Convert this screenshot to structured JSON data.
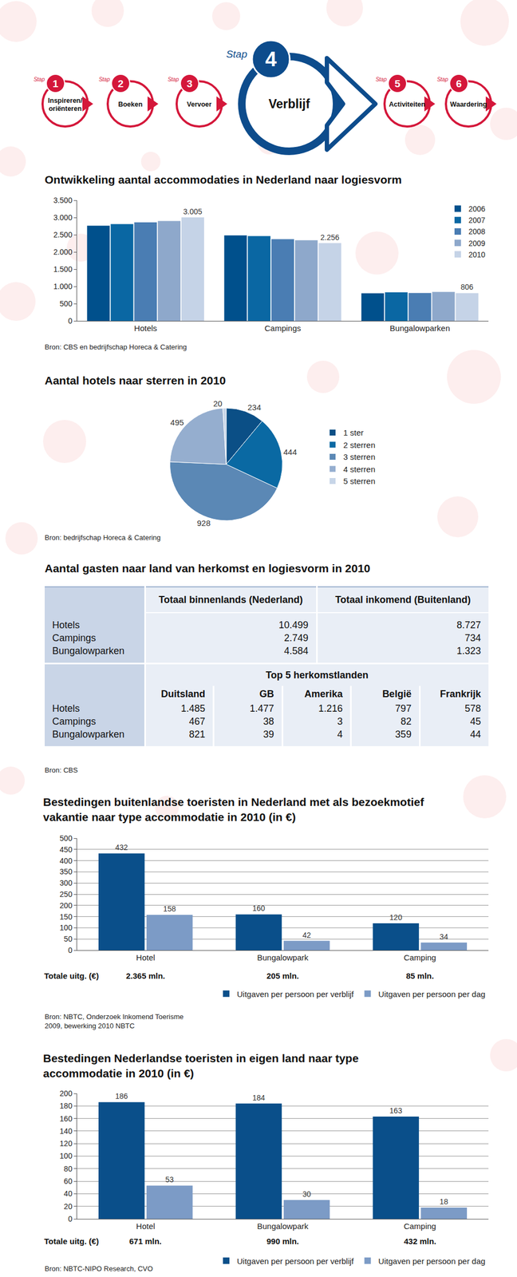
{
  "header": {
    "step_word": "Stap",
    "current": 4,
    "steps": [
      {
        "number": 1,
        "label_lines": [
          "Inspireren/",
          "oriënteren"
        ]
      },
      {
        "number": 2,
        "label_lines": [
          "Boeken"
        ]
      },
      {
        "number": 3,
        "label_lines": [
          "Vervoer"
        ]
      },
      {
        "number": 4,
        "label_lines": [
          "Verblijf"
        ]
      },
      {
        "number": 5,
        "label_lines": [
          "Activiteiten"
        ]
      },
      {
        "number": 6,
        "label_lines": [
          "Waardering"
        ]
      }
    ]
  },
  "chart_data": [
    {
      "type": "bar",
      "title": [
        "Ontwikkeling aantal accommodaties in Nederland naar logiesvorm"
      ],
      "categories": [
        "Hotels",
        "Campings",
        "Bungalowparken"
      ],
      "series": [
        {
          "name": "2006",
          "color": "#00508c",
          "values": [
            2760,
            2480,
            800
          ]
        },
        {
          "name": "2007",
          "color": "#0a67a3",
          "values": [
            2810,
            2460,
            830
          ]
        },
        {
          "name": "2008",
          "color": "#4a7db3",
          "values": [
            2860,
            2370,
            810
          ]
        },
        {
          "name": "2009",
          "color": "#8ea8cb",
          "values": [
            2900,
            2340,
            840
          ]
        },
        {
          "name": "2010",
          "color": "#c5d3e7",
          "values": [
            3005,
            2256,
            806
          ],
          "data_labels": true,
          "value_labels": [
            "3.005",
            "2.256",
            "806"
          ]
        }
      ],
      "ylim": [
        0,
        3500
      ],
      "yticks": [
        0,
        500,
        {
          "value": 1000,
          "label": "1.000"
        },
        {
          "value": 1500,
          "label": "1.500"
        },
        {
          "value": 2000,
          "label": "2.000"
        },
        {
          "value": 2500,
          "label": "2.500"
        },
        {
          "value": 3000,
          "label": "3.000"
        },
        {
          "value": 3500,
          "label": "3.500"
        }
      ],
      "grid": false,
      "legend": "top right",
      "source": [
        "Bron: CBS en bedrijfschap Horeca & Catering"
      ]
    },
    {
      "type": "pie",
      "title": [
        "Aantal hotels naar sterren in 2010"
      ],
      "categories": [
        "1 ster",
        "2 sterren",
        "3 sterren",
        "4 sterren",
        "5 sterren"
      ],
      "values": [
        234,
        444,
        928,
        495,
        20
      ],
      "colors": [
        "#0b4f86",
        "#0a69a3",
        "#5b88b5",
        "#95aecf",
        "#c7d5e8"
      ],
      "data_labels": true,
      "legend": "right",
      "source": [
        "Bron: bedrijfschap Horeca & Catering"
      ]
    },
    {
      "type": "bar",
      "title": [
        "Bestedingen buitenlandse toeristen in Nederland met als bezoekmotief",
        "vakantie naar type accommodatie in 2010 (in €)"
      ],
      "categories": [
        "Hotel",
        "Bungalowpark",
        "Camping"
      ],
      "series": [
        {
          "name": "Uitgaven per persoon per verblijf",
          "color": "#0a4f8a",
          "values": [
            432,
            160,
            120
          ]
        },
        {
          "name": "Uitgaven per persoon per dag",
          "color": "#7c9bc6",
          "values": [
            158,
            42,
            34
          ]
        }
      ],
      "data_labels": true,
      "ylim": [
        0,
        500
      ],
      "yticks": [
        0,
        50,
        100,
        150,
        200,
        250,
        300,
        350,
        400,
        450,
        500
      ],
      "grid": true,
      "legend": "bottom right",
      "totals_label": "Totale uitg. (€)",
      "totals": [
        "2.365 mln.",
        "205 mln.",
        "85 mln."
      ],
      "source": [
        "Bron: NBTC, Onderzoek Inkomend Toerisme",
        "2009, bewerking 2010 NBTC"
      ]
    },
    {
      "type": "bar",
      "title": [
        "Bestedingen Nederlandse toeristen in eigen land naar type",
        "accommodatie in 2010 (in €)"
      ],
      "categories": [
        "Hotel",
        "Bungalowpark",
        "Camping"
      ],
      "series": [
        {
          "name": "Uitgaven per persoon per verblijf",
          "color": "#0a4f8a",
          "values": [
            186,
            184,
            163
          ]
        },
        {
          "name": "Uitgaven per persoon per dag",
          "color": "#7c9bc6",
          "values": [
            53,
            30,
            18
          ]
        }
      ],
      "data_labels": true,
      "ylim": [
        0,
        200
      ],
      "yticks": [
        0,
        20,
        40,
        60,
        80,
        100,
        120,
        140,
        160,
        180,
        200
      ],
      "grid": true,
      "legend": "bottom right",
      "totals_label": "Totale uitg. (€)",
      "totals": [
        "671 mln.",
        "990 mln.",
        "432 mln."
      ],
      "source": [
        "Bron: NBTC-NIPO Research, CVO"
      ]
    }
  ],
  "table": {
    "title": "Aantal gasten naar land van herkomst en logiesvorm in 2010",
    "part1": {
      "columns": [
        "Totaal binnenlands (Nederland)",
        "Totaal inkomend (Buitenland)"
      ],
      "rows": [
        {
          "label": "Hotels",
          "cells": [
            "10.499",
            "8.727"
          ]
        },
        {
          "label": "Campings",
          "cells": [
            "2.749",
            "734"
          ]
        },
        {
          "label": "Bungalowparken",
          "cells": [
            "4.584",
            "1.323"
          ]
        }
      ]
    },
    "part2": {
      "heading": "Top 5 herkomstlanden",
      "columns": [
        "Duitsland",
        "GB",
        "Amerika",
        "België",
        "Frankrijk"
      ],
      "rows": [
        {
          "label": "Hotels",
          "cells": [
            "1.485",
            "1.477",
            "1.216",
            "797",
            "578"
          ]
        },
        {
          "label": "Campings",
          "cells": [
            "467",
            "38",
            "3",
            "82",
            "45"
          ]
        },
        {
          "label": "Bungalowparken",
          "cells": [
            "821",
            "39",
            "4",
            "359",
            "44"
          ]
        }
      ]
    },
    "source": "Bron: CBS"
  }
}
